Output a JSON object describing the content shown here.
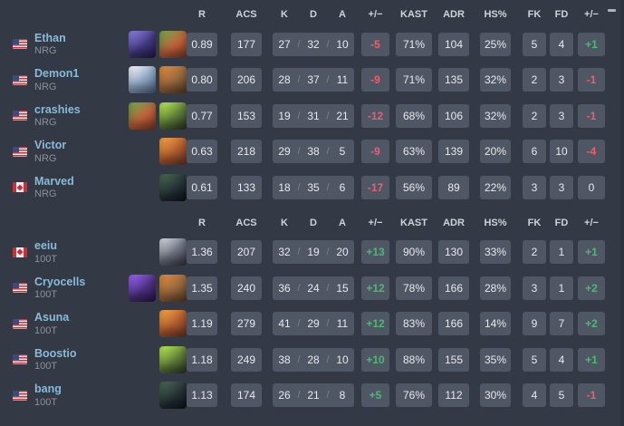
{
  "columns": {
    "r": "R",
    "acs": "ACS",
    "k": "K",
    "d": "D",
    "a": "A",
    "diff": "+/−",
    "kast": "KAST",
    "adr": "ADR",
    "hs": "HS%",
    "fk": "FK",
    "fd": "FD",
    "diff2": "+/−"
  },
  "kda_separator": "/",
  "colors": {
    "positive": "#4db872",
    "negative": "#ea5f6e",
    "player_name": "#87bbd9",
    "cell_background": "#505764",
    "page_background": "#333945"
  },
  "tables": [
    {
      "rows": [
        {
          "name": "Ethan",
          "team": "NRG",
          "country": "us",
          "agents": [
            "omen",
            "skye"
          ],
          "r": "0.89",
          "acs": "177",
          "k": "27",
          "d": "32",
          "a": "10",
          "kd_diff": "-5",
          "kast": "71%",
          "adr": "104",
          "hs": "25%",
          "fk": "5",
          "fd": "4",
          "fkfd_diff": "+1"
        },
        {
          "name": "Demon1",
          "team": "NRG",
          "country": "us",
          "agents": [
            "jett",
            "brimstone"
          ],
          "r": "0.80",
          "acs": "206",
          "k": "28",
          "d": "37",
          "a": "11",
          "kd_diff": "-9",
          "kast": "71%",
          "adr": "135",
          "hs": "32%",
          "fk": "2",
          "fd": "3",
          "fkfd_diff": "-1"
        },
        {
          "name": "crashies",
          "team": "NRG",
          "country": "us",
          "agents": [
            "skye",
            "gekko"
          ],
          "r": "0.77",
          "acs": "153",
          "k": "19",
          "d": "31",
          "a": "21",
          "kd_diff": "-12",
          "kast": "68%",
          "adr": "106",
          "hs": "32%",
          "fk": "2",
          "fd": "3",
          "fkfd_diff": "-1"
        },
        {
          "name": "Victor",
          "team": "NRG",
          "country": "us",
          "agents": [
            "raze"
          ],
          "r": "0.63",
          "acs": "218",
          "k": "29",
          "d": "38",
          "a": "5",
          "kd_diff": "-9",
          "kast": "63%",
          "adr": "139",
          "hs": "20%",
          "fk": "6",
          "fd": "10",
          "fkfd_diff": "-4"
        },
        {
          "name": "Marved",
          "team": "NRG",
          "country": "ca",
          "agents": [
            "viper"
          ],
          "r": "0.61",
          "acs": "133",
          "k": "18",
          "d": "35",
          "a": "6",
          "kd_diff": "-17",
          "kast": "56%",
          "adr": "89",
          "hs": "22%",
          "fk": "3",
          "fd": "3",
          "fkfd_diff": "0"
        }
      ]
    },
    {
      "rows": [
        {
          "name": "eeiu",
          "team": "100T",
          "country": "ca",
          "agents": [
            "fade"
          ],
          "r": "1.36",
          "acs": "207",
          "k": "32",
          "d": "19",
          "a": "20",
          "kd_diff": "+13",
          "kast": "90%",
          "adr": "130",
          "hs": "33%",
          "fk": "2",
          "fd": "1",
          "fkfd_diff": "+1"
        },
        {
          "name": "Cryocells",
          "team": "100T",
          "country": "us",
          "agents": [
            "astra",
            "brimstone"
          ],
          "r": "1.35",
          "acs": "240",
          "k": "36",
          "d": "24",
          "a": "15",
          "kd_diff": "+12",
          "kast": "78%",
          "adr": "166",
          "hs": "28%",
          "fk": "3",
          "fd": "1",
          "fkfd_diff": "+2"
        },
        {
          "name": "Asuna",
          "team": "100T",
          "country": "us",
          "agents": [
            "raze"
          ],
          "r": "1.19",
          "acs": "279",
          "k": "41",
          "d": "29",
          "a": "11",
          "kd_diff": "+12",
          "kast": "83%",
          "adr": "166",
          "hs": "14%",
          "fk": "9",
          "fd": "7",
          "fkfd_diff": "+2"
        },
        {
          "name": "Boostio",
          "team": "100T",
          "country": "us",
          "agents": [
            "gekko"
          ],
          "r": "1.18",
          "acs": "249",
          "k": "38",
          "d": "28",
          "a": "10",
          "kd_diff": "+10",
          "kast": "88%",
          "adr": "155",
          "hs": "35%",
          "fk": "5",
          "fd": "4",
          "fkfd_diff": "+1"
        },
        {
          "name": "bang",
          "team": "100T",
          "country": "us",
          "agents": [
            "viper"
          ],
          "r": "1.13",
          "acs": "174",
          "k": "26",
          "d": "21",
          "a": "8",
          "kd_diff": "+5",
          "kast": "76%",
          "adr": "112",
          "hs": "30%",
          "fk": "4",
          "fd": "5",
          "fkfd_diff": "-1"
        }
      ]
    }
  ]
}
